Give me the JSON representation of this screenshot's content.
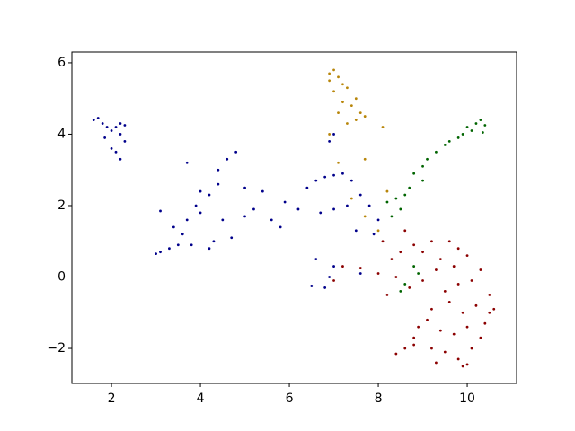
{
  "chart_data": {
    "type": "scatter",
    "xlim": [
      1.11,
      11.11
    ],
    "xticks": [
      2,
      4,
      6,
      8,
      10
    ],
    "ylim": [
      -2.98,
      6.3
    ],
    "yticks": [
      {
        "value": -2,
        "label": "−2"
      },
      0,
      2,
      4,
      6
    ],
    "series": [
      {
        "color": "#00008b",
        "x": [
          1.6,
          1.7,
          1.8,
          1.9,
          2.0,
          2.1,
          2.2,
          2.3,
          1.85,
          2.0,
          2.1,
          2.2,
          2.3,
          2.2,
          3.0,
          3.1,
          3.3,
          3.5,
          3.6,
          3.4,
          3.7,
          3.1,
          3.9,
          4.0,
          4.2,
          4.4,
          4.4,
          4.6,
          4.8,
          3.7,
          4.3,
          4.7,
          5.0,
          5.2,
          5.4,
          5.6,
          5.8,
          5.9,
          6.2,
          4.0,
          4.5,
          5.0,
          4.2,
          3.8,
          6.4,
          6.6,
          6.8,
          7.0,
          7.2,
          7.4,
          7.6,
          7.8,
          8.0,
          6.7,
          7.0,
          7.3,
          7.9,
          7.5,
          6.9,
          7.0,
          6.6,
          6.5,
          6.8,
          7.0,
          6.9,
          7.6
        ],
        "y": [
          4.4,
          4.45,
          4.3,
          4.2,
          4.1,
          4.2,
          4.3,
          4.25,
          3.9,
          3.6,
          3.5,
          3.3,
          3.8,
          4.0,
          0.65,
          0.7,
          0.8,
          0.9,
          1.2,
          1.4,
          1.6,
          1.85,
          2.0,
          2.4,
          2.3,
          2.6,
          3.0,
          3.3,
          3.5,
          3.2,
          1.0,
          1.1,
          1.7,
          1.9,
          2.4,
          1.6,
          1.4,
          2.1,
          1.9,
          1.8,
          1.6,
          2.5,
          0.8,
          0.9,
          2.5,
          2.7,
          2.8,
          2.85,
          2.9,
          2.7,
          2.3,
          2.0,
          1.6,
          1.8,
          1.9,
          2.0,
          1.2,
          1.3,
          3.8,
          4.0,
          0.5,
          -0.25,
          -0.3,
          0.3,
          0.0,
          0.1
        ]
      },
      {
        "color": "#b8860b",
        "x": [
          7.0,
          6.9,
          7.1,
          7.2,
          7.3,
          7.0,
          7.5,
          7.2,
          7.4,
          7.6,
          7.7,
          7.1,
          7.3,
          6.9,
          7.5,
          8.1,
          7.7,
          7.1,
          7.4,
          8.2,
          7.7,
          8.0,
          6.9
        ],
        "y": [
          5.8,
          5.7,
          5.6,
          5.4,
          5.3,
          5.2,
          5.0,
          4.9,
          4.8,
          4.6,
          4.5,
          4.6,
          4.3,
          5.5,
          4.4,
          4.2,
          3.3,
          3.2,
          2.2,
          2.4,
          1.7,
          1.3,
          4.0
        ]
      },
      {
        "color": "#006400",
        "x": [
          10.3,
          10.2,
          10.4,
          10.1,
          9.9,
          9.8,
          9.6,
          9.5,
          9.3,
          9.1,
          9.0,
          8.8,
          9.0,
          8.7,
          8.6,
          8.4,
          8.2,
          8.5,
          8.3,
          8.8,
          8.6,
          8.5,
          8.9,
          10.0,
          10.35
        ],
        "y": [
          4.4,
          4.3,
          4.25,
          4.1,
          4.0,
          3.9,
          3.8,
          3.7,
          3.5,
          3.3,
          3.1,
          2.9,
          2.7,
          2.5,
          2.3,
          2.2,
          2.1,
          1.9,
          1.7,
          0.3,
          -0.2,
          -0.4,
          0.1,
          4.2,
          4.05
        ]
      },
      {
        "color": "#8b0000",
        "x": [
          8.1,
          8.3,
          8.6,
          8.8,
          9.0,
          9.2,
          9.4,
          9.6,
          9.8,
          10.0,
          7.2,
          7.6,
          8.0,
          8.4,
          8.7,
          9.0,
          9.3,
          9.5,
          9.8,
          10.1,
          10.3,
          10.5,
          10.6,
          10.4,
          10.2,
          9.9,
          9.6,
          9.2,
          8.9,
          8.8,
          9.1,
          9.4,
          9.7,
          10.0,
          10.3,
          10.1,
          9.8,
          9.9,
          10.0,
          9.5,
          9.2,
          8.8,
          8.6,
          8.4,
          9.3,
          10.5,
          9.7,
          8.2,
          7.0,
          8.5
        ],
        "y": [
          1.0,
          0.5,
          1.3,
          0.9,
          0.7,
          1.0,
          0.5,
          1.0,
          0.8,
          0.6,
          0.3,
          0.25,
          0.1,
          0.0,
          -0.3,
          -0.1,
          0.2,
          -0.4,
          -0.2,
          -0.1,
          0.2,
          -0.5,
          -0.9,
          -1.3,
          -0.8,
          -1.0,
          -0.7,
          -0.9,
          -1.4,
          -1.7,
          -1.2,
          -1.5,
          -1.6,
          -1.4,
          -1.7,
          -2.0,
          -2.3,
          -2.5,
          -2.45,
          -2.1,
          -2.0,
          -1.9,
          -2.0,
          -2.15,
          -2.4,
          -1.0,
          0.3,
          -0.5,
          -0.1,
          0.7
        ]
      }
    ]
  }
}
